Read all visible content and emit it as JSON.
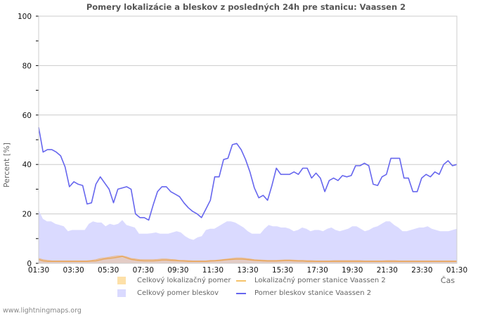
{
  "title": "Pomery lokalizácie a bleskov z posledných 24h pre stanicu: Vaassen 2",
  "footer": "www.lightningmaps.org",
  "colors": {
    "station_lightning_line": "#6666ee",
    "station_locating_line": "#f5c36b",
    "total_lightning_area": "#dadaff",
    "total_locating_area": "#f5dfb0",
    "grid": "#cccccc",
    "frame": "#cccccc"
  },
  "legend": [
    {
      "label": "Celkový lokalizačný pomer",
      "type": "area",
      "color": "#fde0a8"
    },
    {
      "label": "Lokalizačný pomer stanice Vaassen 2",
      "type": "line",
      "color": "#f5c36b"
    },
    {
      "label": "Celkový pomer bleskov",
      "type": "area",
      "color": "#dadaff"
    },
    {
      "label": "Pomer bleskov stanice Vaassen 2",
      "type": "line",
      "color": "#6666ee"
    }
  ],
  "chart_data": {
    "type": "line",
    "title": "Pomery lokalizácie a bleskov z posledných 24h pre stanicu: Vaassen 2",
    "xlabel": "Čas",
    "ylabel": "Percent   [%]",
    "ylim": [
      0,
      100
    ],
    "yticks": [
      0,
      20,
      40,
      60,
      80,
      100
    ],
    "xticks": [
      "01:30",
      "03:30",
      "05:30",
      "07:30",
      "09:30",
      "11:30",
      "13:30",
      "15:30",
      "17:30",
      "19:30",
      "21:30",
      "23:30",
      "01:30"
    ],
    "grid": true,
    "legend_position": "bottom",
    "series": [
      {
        "name": "Pomer bleskov stanice Vaassen 2",
        "type": "line",
        "color": "#6666ee",
        "values": [
          55,
          45,
          46,
          46,
          45,
          43.5,
          39,
          31,
          33,
          32,
          31.5,
          24,
          24.5,
          32,
          35,
          32.5,
          30,
          24.5,
          30,
          30.5,
          31,
          30,
          20,
          18.5,
          18.5,
          17.5,
          23.5,
          29,
          31,
          31,
          29,
          28,
          27,
          24.5,
          22.5,
          21,
          20,
          18.5,
          22,
          25.5,
          35,
          35,
          42,
          42.5,
          48,
          48.5,
          46,
          42,
          37,
          30.5,
          26.5,
          27.5,
          25.5,
          31.5,
          38.5,
          36,
          36,
          36,
          37,
          36,
          38.5,
          38.5,
          34.5,
          36.5,
          34.5,
          29,
          33.5,
          34.5,
          33.5,
          35.5,
          35,
          35.5,
          39.5,
          39.5,
          40.5,
          39.5,
          32,
          31.5,
          35,
          36,
          42.5,
          42.5,
          42.5,
          34.5,
          34.5,
          29,
          29,
          34.5,
          36,
          35,
          37,
          36,
          40,
          41.5,
          39.5,
          40
        ]
      },
      {
        "name": "Celkový pomer bleskov",
        "type": "area",
        "color": "#dadaff",
        "values": [
          21.5,
          18,
          17,
          17,
          16,
          15.5,
          15,
          13,
          13.5,
          13.5,
          13.5,
          13.5,
          16,
          17,
          16.5,
          16.5,
          15,
          16,
          15.5,
          16,
          17.5,
          15.5,
          15,
          14.5,
          12,
          12,
          12,
          12.2,
          12.5,
          12,
          12,
          12,
          12.5,
          13,
          12.5,
          11,
          10,
          9.5,
          10.5,
          11,
          13.5,
          14,
          14,
          15,
          16,
          17,
          17,
          16.5,
          15.5,
          14.5,
          13,
          12,
          12,
          12,
          14,
          15.5,
          15,
          15,
          14.5,
          14.5,
          14,
          13,
          13.5,
          14.5,
          14,
          13,
          13.5,
          13.5,
          13,
          14,
          14.5,
          13.5,
          13,
          13.5,
          14,
          15,
          15,
          14,
          13,
          13.5,
          14.5,
          15,
          16,
          17,
          17,
          15.5,
          14.5,
          13,
          13,
          13.5,
          14,
          14.5,
          14.5,
          15,
          14,
          13.5,
          13,
          13,
          13,
          13.5,
          14
        ]
      },
      {
        "name": "Celkový lokalizačný pomer",
        "type": "area",
        "color": "#fde0a8",
        "values": [
          2,
          1.5,
          1.2,
          1,
          1,
          1,
          1,
          1,
          1,
          1,
          1,
          1,
          1.2,
          1.5,
          2,
          2.2,
          2.5,
          2.8,
          3,
          3,
          2.6,
          2,
          1.8,
          1.5,
          1.5,
          1.5,
          1.5,
          1.6,
          1.8,
          1.8,
          1.6,
          1.5,
          1.2,
          1.2,
          1.1,
          1,
          1,
          1,
          1,
          1.2,
          1.2,
          1.4,
          1.6,
          1.8,
          2,
          2.2,
          2.2,
          2,
          1.8,
          1.5,
          1.4,
          1.3,
          1.2,
          1.2,
          1.2,
          1.3,
          1.4,
          1.4,
          1.3,
          1.2,
          1.2,
          1.1,
          1.1,
          1,
          1,
          1,
          1,
          1.1,
          1.1,
          1.1,
          1.1,
          1.1,
          1.1,
          1.1,
          1,
          1,
          1,
          1,
          1,
          1.1,
          1.1,
          1.1,
          1,
          1,
          1,
          1,
          1,
          1,
          1,
          1,
          1,
          1,
          1,
          1,
          1,
          1
        ]
      },
      {
        "name": "Lokalizačný pomer stanice Vaassen 2",
        "type": "line",
        "color": "#f5c36b",
        "values": [
          1.5,
          1,
          0.8,
          0.8,
          0.8,
          0.8,
          0.8,
          0.8,
          0.8,
          0.8,
          0.8,
          0.8,
          0.9,
          1,
          1.4,
          1.8,
          2,
          2.2,
          2.5,
          2.8,
          2.2,
          1.6,
          1.3,
          1.1,
          1,
          1,
          1,
          1.1,
          1.3,
          1.3,
          1.2,
          1.1,
          1,
          0.9,
          0.8,
          0.8,
          0.8,
          0.8,
          0.8,
          0.9,
          1,
          1.1,
          1.3,
          1.5,
          1.6,
          1.7,
          1.7,
          1.6,
          1.4,
          1.2,
          1.1,
          1,
          0.9,
          0.9,
          0.9,
          1,
          1.1,
          1.1,
          1,
          0.9,
          0.9,
          0.8,
          0.8,
          0.8,
          0.8,
          0.8,
          0.8,
          0.8,
          0.8,
          0.8,
          0.8,
          0.8,
          0.8,
          0.8,
          0.8,
          0.8,
          0.8,
          0.8,
          0.8,
          0.8,
          0.8,
          0.8,
          0.8,
          0.8,
          0.8,
          0.8,
          0.8,
          0.8,
          0.8,
          0.8,
          0.8,
          0.8,
          0.8,
          0.8,
          0.8,
          0.8
        ]
      }
    ]
  }
}
